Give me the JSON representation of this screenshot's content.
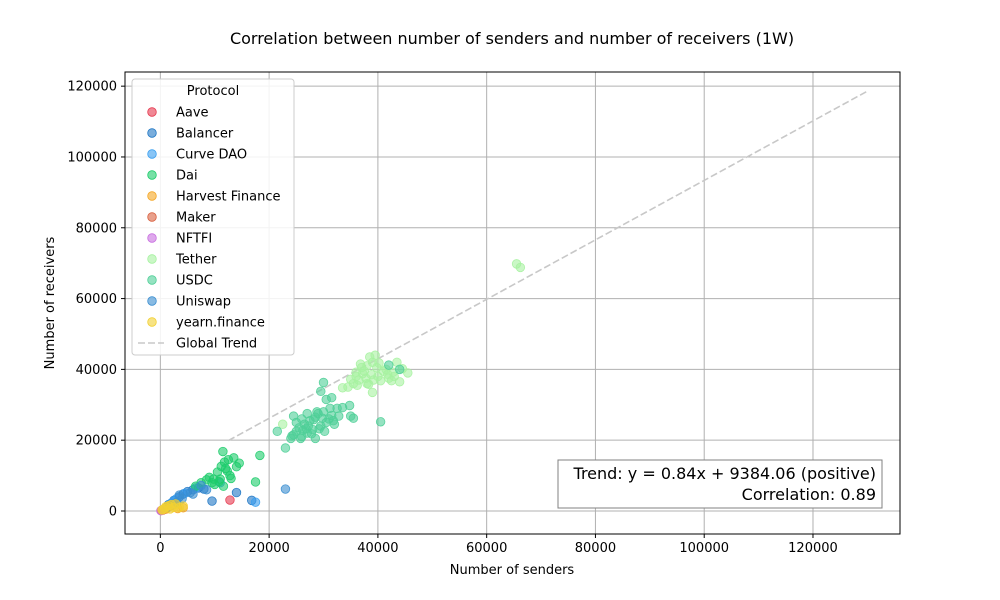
{
  "chart_data": {
    "type": "scatter",
    "title": "Correlation between number of senders and number of receivers (1W)",
    "xlabel": "Number of senders",
    "ylabel": "Number of receivers",
    "xlim": [
      -6500,
      136000
    ],
    "ylim": [
      -6500,
      124000
    ],
    "x_ticks": [
      0,
      20000,
      40000,
      60000,
      80000,
      100000,
      120000
    ],
    "y_ticks": [
      0,
      20000,
      40000,
      60000,
      80000,
      100000,
      120000
    ],
    "grid": true,
    "legend": {
      "title": "Protocol",
      "placement": "top-left"
    },
    "series": [
      {
        "name": "Aave",
        "color": "#e6394f",
        "points": [
          [
            500,
            300
          ],
          [
            1200,
            800
          ],
          [
            12800,
            3100
          ],
          [
            300,
            200
          ]
        ]
      },
      {
        "name": "Balancer",
        "color": "#1f77c4",
        "points": [
          [
            1500,
            1800
          ],
          [
            2500,
            3000
          ],
          [
            3500,
            4000
          ],
          [
            5000,
            5500
          ],
          [
            7000,
            6500
          ],
          [
            9500,
            2800
          ],
          [
            14000,
            5200
          ],
          [
            16800,
            3000
          ],
          [
            8000,
            6200
          ],
          [
            4200,
            4800
          ],
          [
            2000,
            2200
          ],
          [
            6000,
            6000
          ]
        ]
      },
      {
        "name": "Curve DAO",
        "color": "#3a9ff0",
        "points": [
          [
            1800,
            2000
          ],
          [
            3000,
            3500
          ],
          [
            4500,
            5000
          ],
          [
            17500,
            2500
          ],
          [
            11000,
            8000
          ],
          [
            6500,
            6500
          ],
          [
            2500,
            2800
          ]
        ]
      },
      {
        "name": "Dai",
        "color": "#1ccc6a",
        "points": [
          [
            11500,
            16800
          ],
          [
            12500,
            14500
          ],
          [
            13500,
            15000
          ],
          [
            14500,
            13500
          ],
          [
            12000,
            12000
          ],
          [
            10500,
            11000
          ],
          [
            11000,
            9000
          ],
          [
            12800,
            10000
          ],
          [
            9000,
            9500
          ],
          [
            9500,
            8000
          ],
          [
            10000,
            7500
          ],
          [
            8500,
            8800
          ],
          [
            11200,
            12600
          ],
          [
            13000,
            9200
          ],
          [
            17500,
            8200
          ],
          [
            18300,
            15700
          ],
          [
            11600,
            7000
          ],
          [
            12300,
            11300
          ],
          [
            14000,
            12500
          ],
          [
            10800,
            8300
          ],
          [
            9800,
            9000
          ],
          [
            7500,
            8000
          ],
          [
            6500,
            7000
          ],
          [
            11800,
            13800
          ]
        ]
      },
      {
        "name": "Harvest Finance",
        "color": "#f5a623",
        "points": [
          [
            1500,
            1200
          ],
          [
            2500,
            1800
          ],
          [
            3200,
            700
          ],
          [
            4200,
            900
          ],
          [
            1000,
            500
          ],
          [
            2000,
            1500
          ]
        ]
      },
      {
        "name": "Maker",
        "color": "#d9603f",
        "points": [
          [
            200,
            150
          ],
          [
            600,
            400
          ],
          [
            900,
            700
          ]
        ]
      },
      {
        "name": "NFTFI",
        "color": "#c86ee0",
        "points": [
          [
            100,
            80
          ],
          [
            300,
            250
          ]
        ]
      },
      {
        "name": "Tether",
        "color": "#a6f2a0",
        "points": [
          [
            65500,
            69800
          ],
          [
            66200,
            68800
          ],
          [
            22500,
            24500
          ],
          [
            36000,
            38000
          ],
          [
            37500,
            39500
          ],
          [
            38000,
            41000
          ],
          [
            39000,
            42000
          ],
          [
            39500,
            44000
          ],
          [
            38500,
            43500
          ],
          [
            37000,
            40500
          ],
          [
            36500,
            37000
          ],
          [
            35500,
            36000
          ],
          [
            34500,
            35000
          ],
          [
            38000,
            36000
          ],
          [
            40000,
            38000
          ],
          [
            41000,
            39500
          ],
          [
            42000,
            37500
          ],
          [
            43000,
            38000
          ],
          [
            44000,
            36500
          ],
          [
            45500,
            39000
          ],
          [
            40500,
            36800
          ],
          [
            39000,
            33500
          ],
          [
            37800,
            37500
          ],
          [
            36800,
            41500
          ],
          [
            38800,
            38500
          ],
          [
            41500,
            40000
          ],
          [
            33500,
            34800
          ],
          [
            39800,
            40500
          ],
          [
            42500,
            36800
          ],
          [
            36200,
            35500
          ],
          [
            35000,
            37200
          ],
          [
            43500,
            42000
          ],
          [
            40200,
            41800
          ],
          [
            37200,
            38800
          ],
          [
            38300,
            35800
          ],
          [
            41800,
            38600
          ],
          [
            44500,
            40200
          ],
          [
            36000,
            39200
          ],
          [
            39200,
            37000
          ],
          [
            42800,
            39200
          ]
        ]
      },
      {
        "name": "USDC",
        "color": "#4fcf97",
        "points": [
          [
            30000,
            36300
          ],
          [
            29500,
            33800
          ],
          [
            30500,
            31500
          ],
          [
            31500,
            32000
          ],
          [
            33500,
            29200
          ],
          [
            34800,
            29800
          ],
          [
            35000,
            26800
          ],
          [
            35500,
            26200
          ],
          [
            40500,
            25200
          ],
          [
            42000,
            41200
          ],
          [
            44000,
            40000
          ],
          [
            23000,
            17800
          ],
          [
            21500,
            22500
          ],
          [
            24000,
            20500
          ],
          [
            24500,
            21500
          ],
          [
            25000,
            22500
          ],
          [
            25500,
            23500
          ],
          [
            26000,
            21000
          ],
          [
            26500,
            24500
          ],
          [
            27000,
            22000
          ],
          [
            27500,
            25500
          ],
          [
            28000,
            23000
          ],
          [
            28500,
            26500
          ],
          [
            29000,
            27500
          ],
          [
            29500,
            24000
          ],
          [
            30000,
            28000
          ],
          [
            30500,
            25000
          ],
          [
            31000,
            26000
          ],
          [
            31500,
            27000
          ],
          [
            32000,
            24500
          ],
          [
            32500,
            29000
          ],
          [
            26000,
            26000
          ],
          [
            25000,
            25000
          ],
          [
            24500,
            26800
          ],
          [
            27000,
            27500
          ],
          [
            28500,
            20500
          ],
          [
            26200,
            22800
          ],
          [
            27800,
            21800
          ],
          [
            29200,
            23200
          ],
          [
            30200,
            22500
          ],
          [
            31200,
            29000
          ],
          [
            28800,
            28000
          ],
          [
            25800,
            20500
          ],
          [
            27200,
            24000
          ],
          [
            29800,
            26200
          ],
          [
            31800,
            25500
          ],
          [
            32800,
            26800
          ],
          [
            24200,
            21200
          ],
          [
            26800,
            23200
          ],
          [
            28200,
            25800
          ]
        ]
      },
      {
        "name": "Uniswap",
        "color": "#3b8ed0",
        "points": [
          [
            23000,
            6200
          ],
          [
            3500,
            4500
          ],
          [
            5500,
            5200
          ],
          [
            8500,
            6000
          ],
          [
            7500,
            7200
          ],
          [
            4000,
            3500
          ],
          [
            3000,
            2500
          ],
          [
            6000,
            4800
          ],
          [
            2200,
            1800
          ],
          [
            1200,
            1000
          ]
        ]
      },
      {
        "name": "yearn.finance",
        "color": "#f2d032",
        "points": [
          [
            300,
            300
          ],
          [
            800,
            700
          ],
          [
            1500,
            1500
          ],
          [
            2000,
            1800
          ],
          [
            2800,
            2000
          ],
          [
            1000,
            1200
          ],
          [
            500,
            400
          ],
          [
            3500,
            1000
          ],
          [
            4200,
            1400
          ],
          [
            1800,
            600
          ],
          [
            2500,
            1000
          ]
        ]
      }
    ],
    "trend": {
      "name": "Global Trend",
      "slope": 0.84,
      "intercept": 9384.06,
      "x_range": [
        12500,
        130000
      ],
      "label_line1": "Trend: y = 0.84x + 9384.06 (positive)",
      "label_line2": "Correlation: 0.89",
      "color": "#c8c8c8"
    }
  }
}
